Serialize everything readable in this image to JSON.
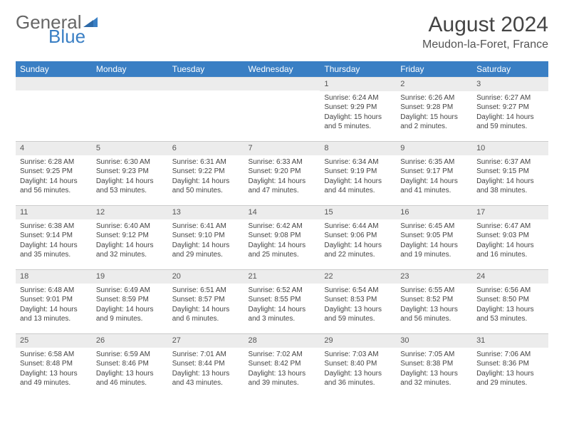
{
  "logo": {
    "text1": "General",
    "text2": "Blue"
  },
  "title": "August 2024",
  "location": "Meudon-la-Foret, France",
  "colors": {
    "header_bg": "#3a7fc4",
    "header_text": "#ffffff",
    "daynum_bg": "#ececec",
    "border": "#cccccc",
    "text": "#444444",
    "logo_gray": "#666666",
    "logo_blue": "#3a7fc4",
    "background": "#ffffff"
  },
  "typography": {
    "title_fontsize": 30,
    "location_fontsize": 16,
    "weekday_fontsize": 12,
    "cell_fontsize": 10,
    "logo_fontsize": 26
  },
  "weekdays": [
    "Sunday",
    "Monday",
    "Tuesday",
    "Wednesday",
    "Thursday",
    "Friday",
    "Saturday"
  ],
  "weeks": [
    [
      {
        "day": "",
        "sunrise": "",
        "sunset": "",
        "daylight": ""
      },
      {
        "day": "",
        "sunrise": "",
        "sunset": "",
        "daylight": ""
      },
      {
        "day": "",
        "sunrise": "",
        "sunset": "",
        "daylight": ""
      },
      {
        "day": "",
        "sunrise": "",
        "sunset": "",
        "daylight": ""
      },
      {
        "day": "1",
        "sunrise": "Sunrise: 6:24 AM",
        "sunset": "Sunset: 9:29 PM",
        "daylight": "Daylight: 15 hours and 5 minutes."
      },
      {
        "day": "2",
        "sunrise": "Sunrise: 6:26 AM",
        "sunset": "Sunset: 9:28 PM",
        "daylight": "Daylight: 15 hours and 2 minutes."
      },
      {
        "day": "3",
        "sunrise": "Sunrise: 6:27 AM",
        "sunset": "Sunset: 9:27 PM",
        "daylight": "Daylight: 14 hours and 59 minutes."
      }
    ],
    [
      {
        "day": "4",
        "sunrise": "Sunrise: 6:28 AM",
        "sunset": "Sunset: 9:25 PM",
        "daylight": "Daylight: 14 hours and 56 minutes."
      },
      {
        "day": "5",
        "sunrise": "Sunrise: 6:30 AM",
        "sunset": "Sunset: 9:23 PM",
        "daylight": "Daylight: 14 hours and 53 minutes."
      },
      {
        "day": "6",
        "sunrise": "Sunrise: 6:31 AM",
        "sunset": "Sunset: 9:22 PM",
        "daylight": "Daylight: 14 hours and 50 minutes."
      },
      {
        "day": "7",
        "sunrise": "Sunrise: 6:33 AM",
        "sunset": "Sunset: 9:20 PM",
        "daylight": "Daylight: 14 hours and 47 minutes."
      },
      {
        "day": "8",
        "sunrise": "Sunrise: 6:34 AM",
        "sunset": "Sunset: 9:19 PM",
        "daylight": "Daylight: 14 hours and 44 minutes."
      },
      {
        "day": "9",
        "sunrise": "Sunrise: 6:35 AM",
        "sunset": "Sunset: 9:17 PM",
        "daylight": "Daylight: 14 hours and 41 minutes."
      },
      {
        "day": "10",
        "sunrise": "Sunrise: 6:37 AM",
        "sunset": "Sunset: 9:15 PM",
        "daylight": "Daylight: 14 hours and 38 minutes."
      }
    ],
    [
      {
        "day": "11",
        "sunrise": "Sunrise: 6:38 AM",
        "sunset": "Sunset: 9:14 PM",
        "daylight": "Daylight: 14 hours and 35 minutes."
      },
      {
        "day": "12",
        "sunrise": "Sunrise: 6:40 AM",
        "sunset": "Sunset: 9:12 PM",
        "daylight": "Daylight: 14 hours and 32 minutes."
      },
      {
        "day": "13",
        "sunrise": "Sunrise: 6:41 AM",
        "sunset": "Sunset: 9:10 PM",
        "daylight": "Daylight: 14 hours and 29 minutes."
      },
      {
        "day": "14",
        "sunrise": "Sunrise: 6:42 AM",
        "sunset": "Sunset: 9:08 PM",
        "daylight": "Daylight: 14 hours and 25 minutes."
      },
      {
        "day": "15",
        "sunrise": "Sunrise: 6:44 AM",
        "sunset": "Sunset: 9:06 PM",
        "daylight": "Daylight: 14 hours and 22 minutes."
      },
      {
        "day": "16",
        "sunrise": "Sunrise: 6:45 AM",
        "sunset": "Sunset: 9:05 PM",
        "daylight": "Daylight: 14 hours and 19 minutes."
      },
      {
        "day": "17",
        "sunrise": "Sunrise: 6:47 AM",
        "sunset": "Sunset: 9:03 PM",
        "daylight": "Daylight: 14 hours and 16 minutes."
      }
    ],
    [
      {
        "day": "18",
        "sunrise": "Sunrise: 6:48 AM",
        "sunset": "Sunset: 9:01 PM",
        "daylight": "Daylight: 14 hours and 13 minutes."
      },
      {
        "day": "19",
        "sunrise": "Sunrise: 6:49 AM",
        "sunset": "Sunset: 8:59 PM",
        "daylight": "Daylight: 14 hours and 9 minutes."
      },
      {
        "day": "20",
        "sunrise": "Sunrise: 6:51 AM",
        "sunset": "Sunset: 8:57 PM",
        "daylight": "Daylight: 14 hours and 6 minutes."
      },
      {
        "day": "21",
        "sunrise": "Sunrise: 6:52 AM",
        "sunset": "Sunset: 8:55 PM",
        "daylight": "Daylight: 14 hours and 3 minutes."
      },
      {
        "day": "22",
        "sunrise": "Sunrise: 6:54 AM",
        "sunset": "Sunset: 8:53 PM",
        "daylight": "Daylight: 13 hours and 59 minutes."
      },
      {
        "day": "23",
        "sunrise": "Sunrise: 6:55 AM",
        "sunset": "Sunset: 8:52 PM",
        "daylight": "Daylight: 13 hours and 56 minutes."
      },
      {
        "day": "24",
        "sunrise": "Sunrise: 6:56 AM",
        "sunset": "Sunset: 8:50 PM",
        "daylight": "Daylight: 13 hours and 53 minutes."
      }
    ],
    [
      {
        "day": "25",
        "sunrise": "Sunrise: 6:58 AM",
        "sunset": "Sunset: 8:48 PM",
        "daylight": "Daylight: 13 hours and 49 minutes."
      },
      {
        "day": "26",
        "sunrise": "Sunrise: 6:59 AM",
        "sunset": "Sunset: 8:46 PM",
        "daylight": "Daylight: 13 hours and 46 minutes."
      },
      {
        "day": "27",
        "sunrise": "Sunrise: 7:01 AM",
        "sunset": "Sunset: 8:44 PM",
        "daylight": "Daylight: 13 hours and 43 minutes."
      },
      {
        "day": "28",
        "sunrise": "Sunrise: 7:02 AM",
        "sunset": "Sunset: 8:42 PM",
        "daylight": "Daylight: 13 hours and 39 minutes."
      },
      {
        "day": "29",
        "sunrise": "Sunrise: 7:03 AM",
        "sunset": "Sunset: 8:40 PM",
        "daylight": "Daylight: 13 hours and 36 minutes."
      },
      {
        "day": "30",
        "sunrise": "Sunrise: 7:05 AM",
        "sunset": "Sunset: 8:38 PM",
        "daylight": "Daylight: 13 hours and 32 minutes."
      },
      {
        "day": "31",
        "sunrise": "Sunrise: 7:06 AM",
        "sunset": "Sunset: 8:36 PM",
        "daylight": "Daylight: 13 hours and 29 minutes."
      }
    ]
  ]
}
